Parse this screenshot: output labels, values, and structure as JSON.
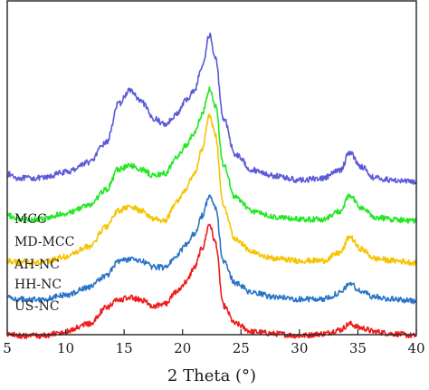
{
  "chart_data": {
    "type": "line",
    "xlabel": "2 Theta (°)",
    "ylabel": "",
    "xlim": [
      5,
      40
    ],
    "xticks": [
      5,
      10,
      15,
      20,
      25,
      30,
      35,
      40
    ],
    "y_ticks_shown": false,
    "grid": false,
    "legend": "series labels placed at the left end of each curve",
    "colors": {
      "MCC": "#5a5ad8",
      "MD-MCC": "#22e822",
      "AH-NC": "#f5c400",
      "HH-NC": "#2a74c8",
      "US-NC": "#ee1c1c"
    },
    "series": [
      {
        "name": "MCC",
        "x": [
          5,
          6,
          8,
          10,
          12,
          13.5,
          14.5,
          15.5,
          16.5,
          17.5,
          18.5,
          19.5,
          20.3,
          21,
          21.7,
          22.3,
          22.8,
          23.5,
          24.5,
          26,
          28,
          30,
          32,
          33.5,
          34.3,
          35.2,
          36.5,
          38,
          40
        ],
        "y": [
          0.3,
          0.28,
          0.28,
          0.31,
          0.36,
          0.46,
          0.65,
          0.72,
          0.66,
          0.58,
          0.55,
          0.6,
          0.67,
          0.72,
          0.84,
          1.0,
          0.88,
          0.58,
          0.4,
          0.32,
          0.29,
          0.27,
          0.28,
          0.32,
          0.41,
          0.34,
          0.28,
          0.27,
          0.26
        ]
      },
      {
        "name": "MD-MCC",
        "x": [
          5,
          6,
          8,
          10,
          12,
          13.5,
          14.5,
          15.5,
          16.5,
          17.5,
          18.5,
          19.5,
          20.3,
          21,
          21.7,
          22.3,
          22.8,
          23.5,
          24.5,
          26,
          28,
          30,
          32,
          33.5,
          34.3,
          35.2,
          36.5,
          38,
          40
        ],
        "y": [
          0.23,
          0.21,
          0.21,
          0.24,
          0.28,
          0.36,
          0.46,
          0.48,
          0.46,
          0.43,
          0.44,
          0.52,
          0.58,
          0.64,
          0.74,
          0.86,
          0.78,
          0.48,
          0.32,
          0.25,
          0.22,
          0.21,
          0.21,
          0.25,
          0.33,
          0.27,
          0.22,
          0.21,
          0.2
        ]
      },
      {
        "name": "AH-NC",
        "x": [
          5,
          6,
          8,
          10,
          12,
          13.5,
          14.5,
          15.5,
          16.5,
          17.5,
          18.5,
          19.5,
          20.3,
          21,
          21.7,
          22.3,
          22.8,
          23.5,
          24.5,
          26,
          28,
          30,
          32,
          33.5,
          34.3,
          35.2,
          36.5,
          38,
          40
        ],
        "y": [
          0.13,
          0.12,
          0.12,
          0.15,
          0.2,
          0.3,
          0.38,
          0.4,
          0.38,
          0.34,
          0.33,
          0.43,
          0.49,
          0.57,
          0.69,
          0.86,
          0.76,
          0.4,
          0.24,
          0.17,
          0.14,
          0.13,
          0.13,
          0.17,
          0.25,
          0.19,
          0.14,
          0.13,
          0.12
        ]
      },
      {
        "name": "HH-NC",
        "x": [
          5,
          6,
          8,
          10,
          12,
          13.5,
          14.5,
          15.5,
          16.5,
          17.5,
          18.5,
          19.5,
          20.3,
          21,
          21.7,
          22.3,
          22.8,
          23.5,
          24.5,
          26,
          28,
          30,
          32,
          33.5,
          34.3,
          35.2,
          36.5,
          38,
          40
        ],
        "y": [
          0.07,
          0.06,
          0.06,
          0.08,
          0.12,
          0.18,
          0.25,
          0.26,
          0.25,
          0.22,
          0.22,
          0.28,
          0.33,
          0.39,
          0.48,
          0.58,
          0.52,
          0.25,
          0.14,
          0.09,
          0.07,
          0.06,
          0.06,
          0.09,
          0.14,
          0.1,
          0.07,
          0.06,
          0.05
        ]
      },
      {
        "name": "US-NC",
        "x": [
          5,
          6,
          8,
          10,
          12,
          13.5,
          14.5,
          15.5,
          16.5,
          17.5,
          18.5,
          19.5,
          20.3,
          21,
          21.7,
          22.3,
          22.8,
          23.5,
          24.5,
          26,
          28,
          30,
          32,
          33.5,
          34.3,
          35.2,
          36.5,
          38,
          40
        ],
        "y": [
          0.0,
          -0.01,
          -0.01,
          0.01,
          0.05,
          0.13,
          0.17,
          0.18,
          0.17,
          0.14,
          0.15,
          0.21,
          0.26,
          0.33,
          0.43,
          0.55,
          0.46,
          0.14,
          0.05,
          0.01,
          0.0,
          -0.01,
          0.0,
          0.02,
          0.05,
          0.03,
          0.01,
          0.0,
          -0.01
        ]
      }
    ]
  }
}
